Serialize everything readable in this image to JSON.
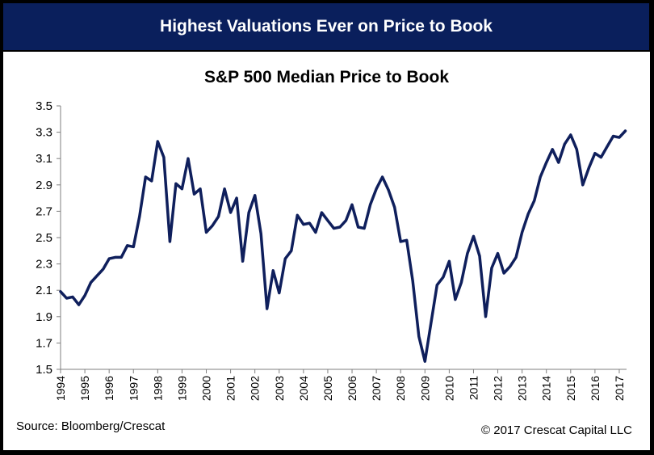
{
  "banner": {
    "title": "Highest Valuations Ever on Price to Book"
  },
  "footer": {
    "source": "Source: Bloomberg/Crescat",
    "copyright": "© 2017 Crescat Capital LLC"
  },
  "colors": {
    "banner_bg": "#0a1f5c",
    "line": "#0f1f5c",
    "axis": "#7f7f7f"
  },
  "chart_data": {
    "type": "line",
    "title": "S&P 500 Median Price to Book",
    "xlabel": "",
    "ylabel": "",
    "ylim": [
      1.5,
      3.5
    ],
    "xlim": [
      1994,
      2017.3
    ],
    "grid": false,
    "y_ticks": [
      "1.5",
      "1.7",
      "1.9",
      "2.1",
      "2.3",
      "2.5",
      "2.7",
      "2.9",
      "3.1",
      "3.3",
      "3.5"
    ],
    "x_ticks": [
      "1994",
      "1995",
      "1996",
      "1997",
      "1998",
      "1999",
      "2000",
      "2001",
      "2002",
      "2003",
      "2004",
      "2005",
      "2006",
      "2007",
      "2008",
      "2009",
      "2010",
      "2011",
      "2012",
      "2013",
      "2014",
      "2015",
      "2016",
      "2017"
    ],
    "series": [
      {
        "x": [
          1994.0,
          1994.25,
          1994.5,
          1994.75,
          1995.0,
          1995.25,
          1995.5,
          1995.75,
          1996.0,
          1996.25,
          1996.5,
          1996.75,
          1997.0,
          1997.25,
          1997.5,
          1997.75,
          1998.0,
          1998.25,
          1998.5,
          1998.75,
          1999.0,
          1999.25,
          1999.5,
          1999.75,
          2000.0,
          2000.25,
          2000.5,
          2000.75,
          2001.0,
          2001.25,
          2001.5,
          2001.75,
          2002.0,
          2002.25,
          2002.5,
          2002.75,
          2003.0,
          2003.25,
          2003.5,
          2003.75,
          2004.0,
          2004.25,
          2004.5,
          2004.75,
          2005.0,
          2005.25,
          2005.5,
          2005.75,
          2006.0,
          2006.25,
          2006.5,
          2006.75,
          2007.0,
          2007.25,
          2007.5,
          2007.75,
          2008.0,
          2008.25,
          2008.5,
          2008.75,
          2009.0,
          2009.25,
          2009.5,
          2009.75,
          2010.0,
          2010.25,
          2010.5,
          2010.75,
          2011.0,
          2011.25,
          2011.5,
          2011.75,
          2012.0,
          2012.25,
          2012.5,
          2012.75,
          2013.0,
          2013.25,
          2013.5,
          2013.75,
          2014.0,
          2014.25,
          2014.5,
          2014.75,
          2015.0,
          2015.25,
          2015.5,
          2015.75,
          2016.0,
          2016.25,
          2016.5,
          2016.75,
          2017.0,
          2017.25
        ],
        "values": [
          2.09,
          2.04,
          2.05,
          1.99,
          2.06,
          2.16,
          2.21,
          2.26,
          2.34,
          2.35,
          2.35,
          2.44,
          2.43,
          2.66,
          2.96,
          2.93,
          3.23,
          3.11,
          2.47,
          2.91,
          2.87,
          3.1,
          2.83,
          2.87,
          2.54,
          2.59,
          2.66,
          2.87,
          2.69,
          2.8,
          2.32,
          2.69,
          2.82,
          2.53,
          1.96,
          2.25,
          2.08,
          2.34,
          2.4,
          2.67,
          2.6,
          2.61,
          2.54,
          2.69,
          2.63,
          2.57,
          2.58,
          2.63,
          2.75,
          2.58,
          2.57,
          2.75,
          2.87,
          2.96,
          2.86,
          2.73,
          2.47,
          2.48,
          2.17,
          1.75,
          1.56,
          1.85,
          2.14,
          2.2,
          2.32,
          2.03,
          2.16,
          2.38,
          2.51,
          2.36,
          1.9,
          2.27,
          2.38,
          2.23,
          2.28,
          2.35,
          2.54,
          2.68,
          2.78,
          2.96,
          3.07,
          3.17,
          3.07,
          3.21,
          3.28,
          3.17,
          2.9,
          3.03,
          3.14,
          3.11,
          3.19,
          3.27,
          3.26,
          3.31
        ]
      }
    ]
  }
}
